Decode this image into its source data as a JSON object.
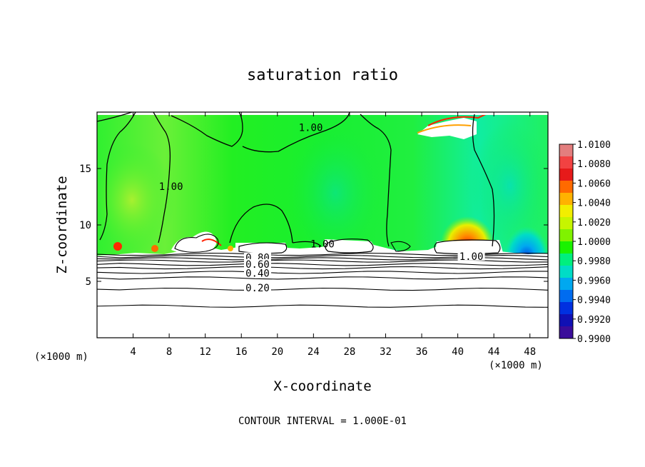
{
  "chart_data": {
    "type": "heatmap",
    "title": "saturation ratio",
    "xlabel": "X-coordinate",
    "ylabel": "Z-coordinate",
    "x_unit_left": "(×1000 m)",
    "x_unit_right": "(×1000 m)",
    "xlim": [
      0,
      50
    ],
    "ylim": [
      0,
      20
    ],
    "x_ticks": [
      4,
      8,
      12,
      16,
      20,
      24,
      28,
      32,
      36,
      40,
      44,
      48
    ],
    "x_tick_labels": [
      "4",
      "8",
      "12",
      "16",
      "20",
      "24",
      "28",
      "32",
      "36",
      "40",
      "44",
      "48"
    ],
    "y_ticks": [
      5,
      10,
      15
    ],
    "y_tick_labels": [
      "5",
      "10",
      "15"
    ],
    "footer": "CONTOUR INTERVAL = 1.000E-01",
    "colorbar": {
      "min": 0.99,
      "max": 1.01,
      "labels": [
        "1.0100",
        "1.0080",
        "1.0060",
        "1.0040",
        "1.0020",
        "1.0000",
        "0.9980",
        "0.9960",
        "0.9940",
        "0.9920",
        "0.9900"
      ],
      "colors": [
        "#e37e7e",
        "#f24242",
        "#e61a1a",
        "#ff6a00",
        "#ffb200",
        "#f2ee00",
        "#c6f500",
        "#80f200",
        "#1af200",
        "#00ef7e",
        "#00dcc6",
        "#00a8f0",
        "#006cf0",
        "#0030e0",
        "#1010b4",
        "#3a0c9a"
      ]
    },
    "contour_labels": [
      {
        "text": "1.00",
        "x": 23.7,
        "y": 18.5
      },
      {
        "text": "1.00",
        "x": 8.2,
        "y": 13.3
      },
      {
        "text": "1.00",
        "x": 25.0,
        "y": 8.2
      },
      {
        "text": "1.00",
        "x": 41.5,
        "y": 7.1
      },
      {
        "text": "0.80",
        "x": 17.8,
        "y": 7.0
      },
      {
        "text": "0.60",
        "x": 17.8,
        "y": 6.4
      },
      {
        "text": "0.40",
        "x": 17.8,
        "y": 5.6
      },
      {
        "text": "0.20",
        "x": 17.8,
        "y": 4.3
      }
    ],
    "lower_contours_z": [
      7.4,
      7.2,
      7.0,
      6.8,
      6.5,
      6.2,
      5.8,
      5.3,
      4.3,
      2.8
    ]
  }
}
